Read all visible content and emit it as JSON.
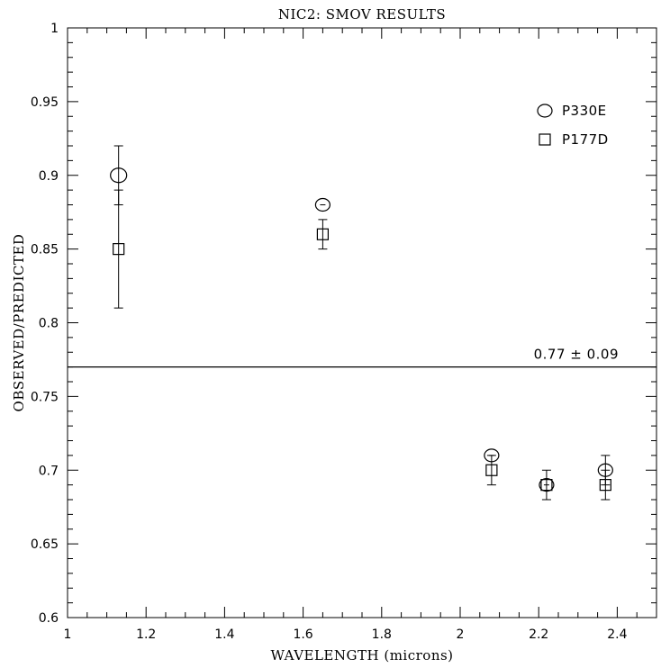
{
  "chart_data": {
    "type": "scatter",
    "title": "NIC2: SMOV RESULTS",
    "xlabel": "WAVELENGTH (microns)",
    "ylabel": "OBSERVED/PREDICTED",
    "xlim": [
      1.0,
      2.5
    ],
    "ylim": [
      0.6,
      1.0
    ],
    "x_ticks": [
      1,
      1.2,
      1.4,
      1.6,
      1.8,
      2,
      2.2,
      2.4
    ],
    "x_tick_labels": [
      "1",
      "1.2",
      "1.4",
      "1.6",
      "1.8",
      "2",
      "2.2",
      "2.4"
    ],
    "y_ticks": [
      0.6,
      0.65,
      0.7,
      0.75,
      0.8,
      0.85,
      0.9,
      0.95,
      1.0
    ],
    "y_tick_labels": [
      "0.6",
      "0.65",
      "0.7",
      "0.75",
      "0.8",
      "0.85",
      "0.9",
      "0.95",
      "1"
    ],
    "grid": false,
    "legend_position": "top-right",
    "series": [
      {
        "name": "P330E",
        "marker": "circle",
        "points": [
          {
            "x": 1.13,
            "y": 0.9,
            "err": 0.02
          },
          {
            "x": 1.65,
            "y": 0.88,
            "err": 0.0
          },
          {
            "x": 2.08,
            "y": 0.71,
            "err": 0.0
          },
          {
            "x": 2.22,
            "y": 0.69,
            "err": 0.0
          },
          {
            "x": 2.37,
            "y": 0.7,
            "err": 0.01
          }
        ]
      },
      {
        "name": "P177D",
        "marker": "square",
        "points": [
          {
            "x": 1.13,
            "y": 0.85,
            "err": 0.04
          },
          {
            "x": 1.65,
            "y": 0.86,
            "err": 0.01
          },
          {
            "x": 2.08,
            "y": 0.7,
            "err": 0.01
          },
          {
            "x": 2.22,
            "y": 0.69,
            "err": 0.01
          },
          {
            "x": 2.37,
            "y": 0.69,
            "err": 0.01
          }
        ]
      }
    ],
    "reference_line": {
      "y": 0.77,
      "label": "0.77 ± 0.09"
    }
  }
}
